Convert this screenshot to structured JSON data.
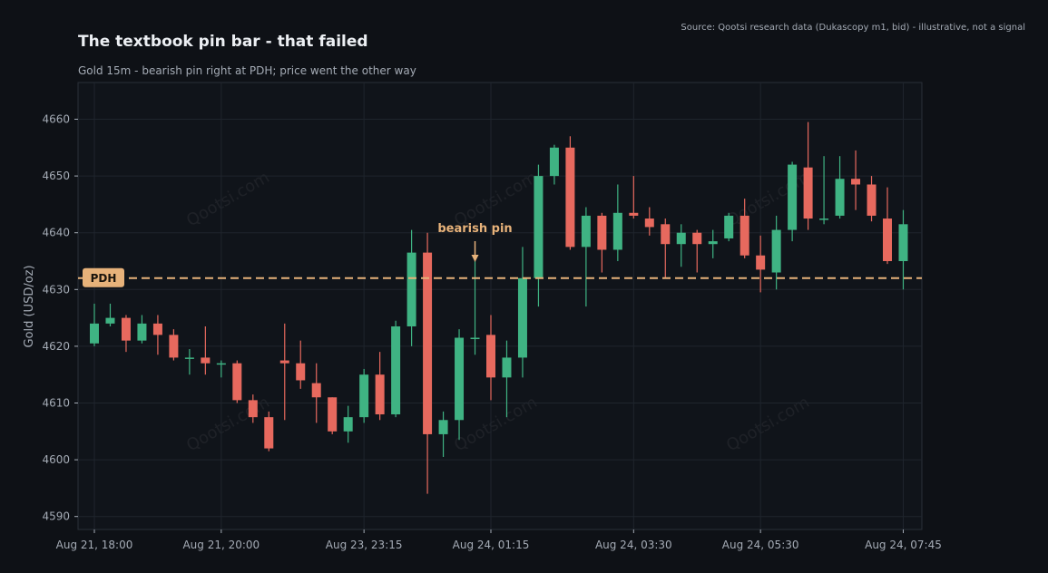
{
  "source_note": "Source: Qootsi research data (Dukascopy m1, bid) - illustrative, not a signal",
  "watermark": "Qootsi.com",
  "colors": {
    "bull": "#3fb383",
    "bear": "#e7695e",
    "pdh": "#e7b27a",
    "background": "#0e1116",
    "plot_background": "#10141a",
    "grid": "#1f252d",
    "annotation": "#e7b27a"
  },
  "chart_data": {
    "type": "candlestick",
    "title": "The textbook pin bar - that failed",
    "subtitle": "Gold 15m - bearish pin right at PDH; price went the other way",
    "ylabel": "Gold (USD/oz)",
    "xlabel": "",
    "ylim": [
      4588,
      4666
    ],
    "y_ticks": [
      4590,
      4600,
      4610,
      4620,
      4630,
      4640,
      4650,
      4660
    ],
    "x_ticks": [
      {
        "index": 0,
        "label": "Aug 21, 18:00"
      },
      {
        "index": 8,
        "label": "Aug 21, 20:00"
      },
      {
        "index": 17,
        "label": "Aug 23, 23:15"
      },
      {
        "index": 25,
        "label": "Aug 24, 01:15"
      },
      {
        "index": 34,
        "label": "Aug 24, 03:30"
      },
      {
        "index": 42,
        "label": "Aug 24, 05:30"
      },
      {
        "index": 51,
        "label": "Aug 24, 07:45"
      }
    ],
    "grid": true,
    "pdh": {
      "label": "PDH",
      "value": 4632
    },
    "annotation": {
      "text": "bearish pin",
      "index": 24,
      "value": 4635
    },
    "candles": [
      {
        "o": 4620.5,
        "h": 4627.5,
        "l": 4620.0,
        "c": 4624.0
      },
      {
        "o": 4624.0,
        "h": 4627.5,
        "l": 4623.5,
        "c": 4625.0
      },
      {
        "o": 4625.0,
        "h": 4625.5,
        "l": 4619.0,
        "c": 4621.0
      },
      {
        "o": 4621.0,
        "h": 4625.5,
        "l": 4620.5,
        "c": 4624.0
      },
      {
        "o": 4624.0,
        "h": 4625.5,
        "l": 4618.5,
        "c": 4622.0
      },
      {
        "o": 4622.0,
        "h": 4623.0,
        "l": 4617.5,
        "c": 4618.0
      },
      {
        "o": 4618.0,
        "h": 4619.5,
        "l": 4615.0,
        "c": 4618.0
      },
      {
        "o": 4618.0,
        "h": 4623.5,
        "l": 4615.0,
        "c": 4617.0
      },
      {
        "o": 4617.0,
        "h": 4617.5,
        "l": 4614.5,
        "c": 4617.0
      },
      {
        "o": 4617.0,
        "h": 4617.5,
        "l": 4610.0,
        "c": 4610.5
      },
      {
        "o": 4610.5,
        "h": 4611.5,
        "l": 4606.5,
        "c": 4607.5
      },
      {
        "o": 4607.5,
        "h": 4608.5,
        "l": 4601.5,
        "c": 4602.0
      },
      {
        "o": 4617.5,
        "h": 4624.0,
        "l": 4607.0,
        "c": 4617.0
      },
      {
        "o": 4617.0,
        "h": 4621.0,
        "l": 4612.5,
        "c": 4614.0
      },
      {
        "o": 4613.5,
        "h": 4617.0,
        "l": 4606.5,
        "c": 4611.0
      },
      {
        "o": 4611.0,
        "h": 4611.0,
        "l": 4604.5,
        "c": 4605.0
      },
      {
        "o": 4605.0,
        "h": 4609.5,
        "l": 4603.0,
        "c": 4607.5
      },
      {
        "o": 4607.5,
        "h": 4616.0,
        "l": 4606.5,
        "c": 4615.0
      },
      {
        "o": 4615.0,
        "h": 4619.0,
        "l": 4607.0,
        "c": 4608.0
      },
      {
        "o": 4608.0,
        "h": 4624.5,
        "l": 4607.5,
        "c": 4623.5
      },
      {
        "o": 4623.5,
        "h": 4640.5,
        "l": 4620.0,
        "c": 4636.5
      },
      {
        "o": 4636.5,
        "h": 4640.0,
        "l": 4594.0,
        "c": 4604.5
      },
      {
        "o": 4604.5,
        "h": 4608.5,
        "l": 4600.5,
        "c": 4607.0
      },
      {
        "o": 4607.0,
        "h": 4623.0,
        "l": 4603.5,
        "c": 4621.5
      },
      {
        "o": 4621.5,
        "h": 4635.0,
        "l": 4618.5,
        "c": 4621.5
      },
      {
        "o": 4622.0,
        "h": 4625.5,
        "l": 4610.5,
        "c": 4614.5
      },
      {
        "o": 4614.5,
        "h": 4621.0,
        "l": 4607.5,
        "c": 4618.0
      },
      {
        "o": 4618.0,
        "h": 4637.5,
        "l": 4614.5,
        "c": 4632.0
      },
      {
        "o": 4632.0,
        "h": 4652.0,
        "l": 4627.0,
        "c": 4650.0
      },
      {
        "o": 4650.0,
        "h": 4655.5,
        "l": 4648.5,
        "c": 4655.0
      },
      {
        "o": 4655.0,
        "h": 4657.0,
        "l": 4637.0,
        "c": 4637.5
      },
      {
        "o": 4637.5,
        "h": 4644.5,
        "l": 4627.0,
        "c": 4643.0
      },
      {
        "o": 4643.0,
        "h": 4643.5,
        "l": 4633.0,
        "c": 4637.0
      },
      {
        "o": 4637.0,
        "h": 4648.5,
        "l": 4635.0,
        "c": 4643.5
      },
      {
        "o": 4643.5,
        "h": 4650.0,
        "l": 4642.5,
        "c": 4643.0
      },
      {
        "o": 4642.5,
        "h": 4644.5,
        "l": 4639.5,
        "c": 4641.0
      },
      {
        "o": 4641.5,
        "h": 4642.5,
        "l": 4632.0,
        "c": 4638.0
      },
      {
        "o": 4638.0,
        "h": 4641.5,
        "l": 4634.0,
        "c": 4640.0
      },
      {
        "o": 4640.0,
        "h": 4640.5,
        "l": 4633.0,
        "c": 4638.0
      },
      {
        "o": 4638.0,
        "h": 4640.5,
        "l": 4635.5,
        "c": 4638.5
      },
      {
        "o": 4639.0,
        "h": 4643.5,
        "l": 4638.5,
        "c": 4643.0
      },
      {
        "o": 4643.0,
        "h": 4646.0,
        "l": 4635.5,
        "c": 4636.0
      },
      {
        "o": 4636.0,
        "h": 4639.5,
        "l": 4629.5,
        "c": 4633.5
      },
      {
        "o": 4633.0,
        "h": 4643.0,
        "l": 4630.0,
        "c": 4640.5
      },
      {
        "o": 4640.5,
        "h": 4652.5,
        "l": 4638.5,
        "c": 4652.0
      },
      {
        "o": 4651.5,
        "h": 4659.5,
        "l": 4640.5,
        "c": 4642.5
      },
      {
        "o": 4642.5,
        "h": 4653.5,
        "l": 4641.5,
        "c": 4642.5
      },
      {
        "o": 4643.0,
        "h": 4653.5,
        "l": 4642.5,
        "c": 4649.5
      },
      {
        "o": 4649.5,
        "h": 4654.5,
        "l": 4644.0,
        "c": 4648.5
      },
      {
        "o": 4648.5,
        "h": 4650.0,
        "l": 4642.0,
        "c": 4643.0
      },
      {
        "o": 4642.5,
        "h": 4648.0,
        "l": 4634.5,
        "c": 4635.0
      },
      {
        "o": 4635.0,
        "h": 4644.0,
        "l": 4630.0,
        "c": 4641.5
      }
    ]
  }
}
